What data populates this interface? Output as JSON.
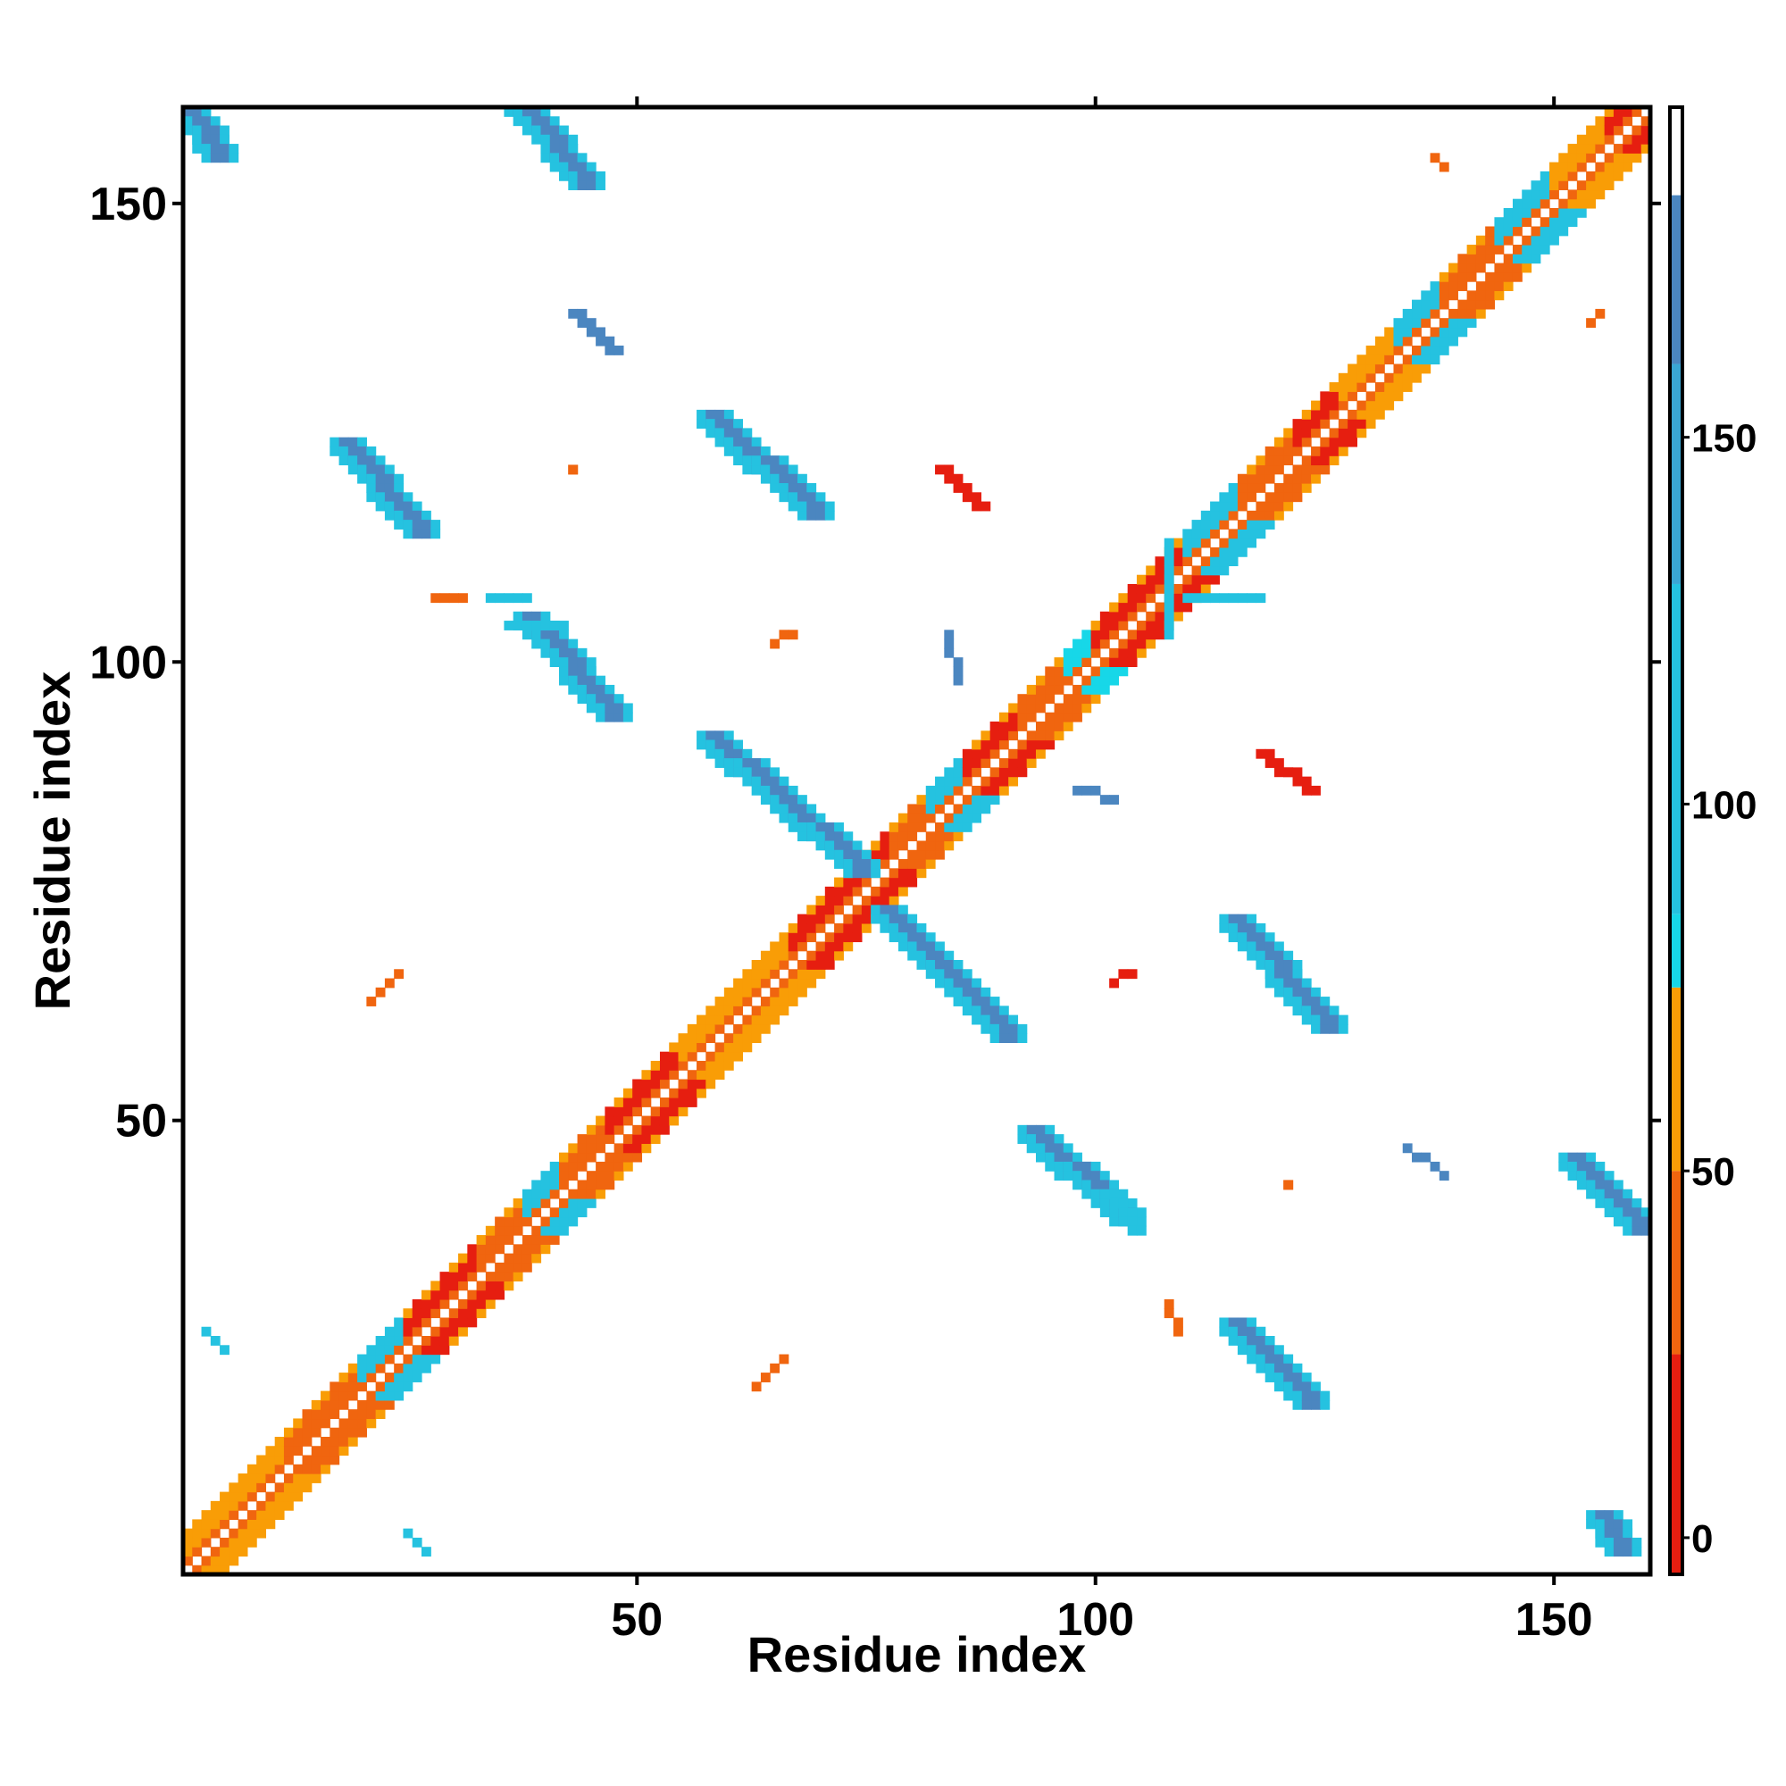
{
  "chart_data": {
    "type": "heatmap",
    "title": "",
    "xlabel": "Residue index",
    "ylabel": "Residue index",
    "xlim": [
      1,
      160
    ],
    "ylim": [
      1,
      160
    ],
    "x_ticks": [
      50,
      100,
      150
    ],
    "y_ticks": [
      50,
      100,
      150
    ],
    "colorbar": {
      "ticks": [
        0,
        50,
        100,
        150
      ],
      "range": [
        -5,
        195
      ],
      "bins": [
        {
          "from": -5,
          "to": 25,
          "color": "#e61e10"
        },
        {
          "from": 25,
          "to": 50,
          "color": "#f0650f"
        },
        {
          "from": 50,
          "to": 75,
          "color": "#f99d06"
        },
        {
          "from": 75,
          "to": 85,
          "color": "#17d7e8"
        },
        {
          "from": 85,
          "to": 130,
          "color": "#25c2e0"
        },
        {
          "from": 130,
          "to": 160,
          "color": "#3aa6d4"
        },
        {
          "from": 160,
          "to": 183,
          "color": "#4b86c0"
        },
        {
          "from": 183,
          "to": 195,
          "color": "#ffffff"
        }
      ]
    },
    "diagonal_band": {
      "from": 1,
      "to": 160,
      "width": 4
    },
    "diagonal_segments": [
      {
        "from": 1,
        "to": 12,
        "value": 50
      },
      {
        "from": 12,
        "to": 20,
        "value": 30
      },
      {
        "from": 20,
        "to": 25,
        "value": 90
      },
      {
        "from": 25,
        "to": 33,
        "value": 10
      },
      {
        "from": 33,
        "to": 38,
        "value": 40
      },
      {
        "from": 38,
        "to": 42,
        "value": 90
      },
      {
        "from": 42,
        "to": 47,
        "value": 30
      },
      {
        "from": 47,
        "to": 55,
        "value": 0
      },
      {
        "from": 55,
        "to": 60,
        "value": 60
      },
      {
        "from": 60,
        "to": 67,
        "value": 70
      },
      {
        "from": 67,
        "to": 72,
        "value": 20
      },
      {
        "from": 72,
        "to": 78,
        "value": 0
      },
      {
        "from": 78,
        "to": 82,
        "value": 40
      },
      {
        "from": 82,
        "to": 86,
        "value": 110
      },
      {
        "from": 86,
        "to": 92,
        "value": 20
      },
      {
        "from": 92,
        "to": 97,
        "value": 40
      },
      {
        "from": 97,
        "to": 100,
        "value": 80
      },
      {
        "from": 100,
        "to": 105,
        "value": 0
      },
      {
        "from": 105,
        "to": 110,
        "value": 20
      },
      {
        "from": 110,
        "to": 116,
        "value": 90
      },
      {
        "from": 116,
        "to": 122,
        "value": 30
      },
      {
        "from": 122,
        "to": 127,
        "value": 0
      },
      {
        "from": 127,
        "to": 133,
        "value": 60
      },
      {
        "from": 133,
        "to": 138,
        "value": 90
      },
      {
        "from": 138,
        "to": 144,
        "value": 40
      },
      {
        "from": 144,
        "to": 150,
        "value": 100
      },
      {
        "from": 150,
        "to": 156,
        "value": 50
      },
      {
        "from": 156,
        "to": 160,
        "value": 10
      }
    ],
    "off_diagonal_contacts": [
      {
        "x0": 19,
        "y0": 123,
        "x1": 27,
        "y1": 114,
        "width": 4,
        "value": 175
      },
      {
        "x0": 39,
        "y0": 104,
        "x1": 48,
        "y1": 94,
        "width": 4,
        "value": 170
      },
      {
        "x0": 38,
        "y0": 160,
        "x1": 45,
        "y1": 152,
        "width": 4,
        "value": 170
      },
      {
        "x0": 59,
        "y0": 126,
        "x1": 70,
        "y1": 116,
        "width": 4,
        "value": 175
      },
      {
        "x0": 59,
        "y0": 91,
        "x1": 75,
        "y1": 77,
        "width": 4,
        "value": 170
      },
      {
        "x0": 78,
        "y0": 72,
        "x1": 91,
        "y1": 59,
        "width": 4,
        "value": 175
      },
      {
        "x0": 94,
        "y0": 48,
        "x1": 104,
        "y1": 39,
        "width": 4,
        "value": 175
      },
      {
        "x0": 116,
        "y0": 71,
        "x1": 126,
        "y1": 60,
        "width": 4,
        "value": 175
      },
      {
        "x0": 116,
        "y0": 27,
        "x1": 124,
        "y1": 19,
        "width": 4,
        "value": 175
      },
      {
        "x0": 153,
        "y0": 45,
        "x1": 160,
        "y1": 38,
        "width": 4,
        "value": 175
      },
      {
        "x0": 2,
        "y0": 159,
        "x1": 5,
        "y1": 155,
        "width": 4,
        "value": 175
      },
      {
        "x0": 156,
        "y0": 6,
        "x1": 158,
        "y1": 3,
        "width": 4,
        "value": 175
      },
      {
        "x0": 44,
        "y0": 138,
        "x1": 48,
        "y1": 134,
        "width": 2,
        "value": 160
      },
      {
        "x0": 34,
        "y0": 107,
        "x1": 38,
        "y1": 107,
        "width": 1,
        "value": 90
      },
      {
        "x0": 37,
        "y0": 104,
        "x1": 42,
        "y1": 104,
        "width": 2,
        "value": 90
      },
      {
        "x0": 84,
        "y0": 121,
        "x1": 88,
        "y1": 117,
        "width": 2,
        "value": 10
      },
      {
        "x0": 119,
        "y0": 90,
        "x1": 124,
        "y1": 86,
        "width": 2,
        "value": 10
      },
      {
        "x0": 24,
        "y0": 66,
        "x1": 21,
        "y1": 63,
        "width": 1,
        "value": 40
      },
      {
        "x0": 66,
        "y0": 24,
        "x1": 63,
        "y1": 21,
        "width": 1,
        "value": 40
      },
      {
        "x0": 110,
        "y0": 107,
        "x1": 118,
        "y1": 107,
        "width": 1,
        "value": 90
      },
      {
        "x0": 108,
        "y0": 113,
        "x1": 108,
        "y1": 103,
        "width": 1,
        "value": 90
      },
      {
        "x0": 102,
        "y0": 42,
        "x1": 105,
        "y1": 38,
        "width": 2,
        "value": 90
      },
      {
        "x0": 98,
        "y0": 86,
        "x1": 102,
        "y1": 85,
        "width": 1,
        "value": 170
      },
      {
        "x0": 134,
        "y0": 47,
        "x1": 138,
        "y1": 44,
        "width": 1,
        "value": 175
      },
      {
        "x0": 3,
        "y0": 27,
        "x1": 5,
        "y1": 25,
        "width": 1,
        "value": 90
      },
      {
        "x0": 25,
        "y0": 5,
        "x1": 27,
        "y1": 3,
        "width": 1,
        "value": 90
      },
      {
        "x0": 84,
        "y0": 103,
        "x1": 85,
        "y1": 98,
        "width": 1,
        "value": 160
      },
      {
        "x0": 28,
        "y0": 107,
        "x1": 31,
        "y1": 107,
        "width": 1,
        "value": 35
      },
      {
        "x0": 137,
        "y0": 155,
        "x1": 138,
        "y1": 154,
        "width": 1,
        "value": 45
      },
      {
        "x0": 154,
        "y0": 137,
        "x1": 155,
        "y1": 138,
        "width": 1,
        "value": 45
      },
      {
        "x0": 65,
        "y0": 102,
        "x1": 67,
        "y1": 103,
        "width": 1,
        "value": 35
      },
      {
        "x0": 102,
        "y0": 65,
        "x1": 104,
        "y1": 66,
        "width": 1,
        "value": 10
      },
      {
        "x0": 108,
        "y0": 30,
        "x1": 109,
        "y1": 27,
        "width": 1,
        "value": 30
      },
      {
        "x0": 43,
        "y0": 121,
        "x1": 43,
        "y1": 121,
        "width": 1,
        "value": 40
      },
      {
        "x0": 121,
        "y0": 43,
        "x1": 121,
        "y1": 43,
        "width": 1,
        "value": 40
      }
    ]
  }
}
